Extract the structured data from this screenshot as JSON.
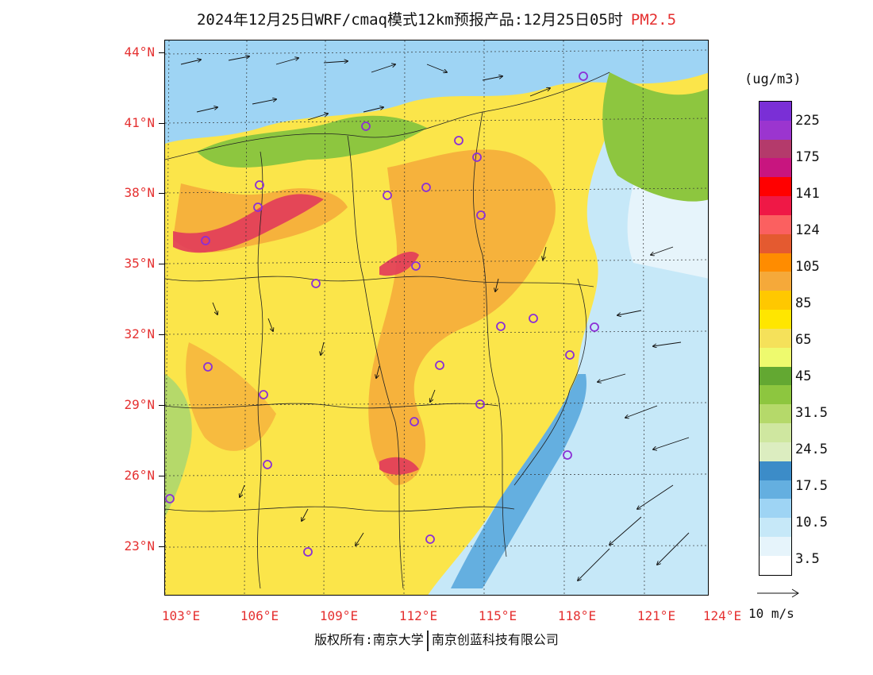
{
  "title": {
    "main": "2024年12月25日WRF/cmaq模式12km预报产品:12月25日05时",
    "pollutant": "PM2.5"
  },
  "lat_labels": [
    "44°N",
    "41°N",
    "38°N",
    "35°N",
    "32°N",
    "29°N",
    "26°N",
    "23°N"
  ],
  "lon_labels": [
    "103°E",
    "106°E",
    "109°E",
    "112°E",
    "115°E",
    "118°E",
    "121°E",
    "124°E"
  ],
  "legend": {
    "unit": "(ug/m3)",
    "labels": [
      "225",
      "175",
      "141",
      "124",
      "105",
      "85",
      "65",
      "45",
      "31.5",
      "24.5",
      "17.5",
      "10.5",
      "3.5"
    ],
    "colors": [
      "#7a2fd6",
      "#9b35cf",
      "#b43a6b",
      "#c8157f",
      "#ff0000",
      "#ef1846",
      "#fb6060",
      "#e45a30",
      "#ff8c00",
      "#f5a93a",
      "#ffc800",
      "#ffe600",
      "#f5e15a",
      "#eefa6e",
      "#63a832",
      "#8dc63f",
      "#b5d96a",
      "#cfe7a0",
      "#dcedc0",
      "#3c8cc8",
      "#64afe0",
      "#9ed4f4",
      "#c6e8f8",
      "#e6f4fb",
      "#ffffff"
    ]
  },
  "wind_reference": "10 m/s",
  "footer": {
    "left": "版权所有:南京大学",
    "right": "南京创蓝科技有限公司"
  },
  "map_features": {
    "land_color": "#fbe54a",
    "sea_color": "#c6e8f8",
    "high_pollution_color": "#f5a93a",
    "hotspot_color": "#e23a5a",
    "site_marker_color": "#8b2fd6"
  }
}
